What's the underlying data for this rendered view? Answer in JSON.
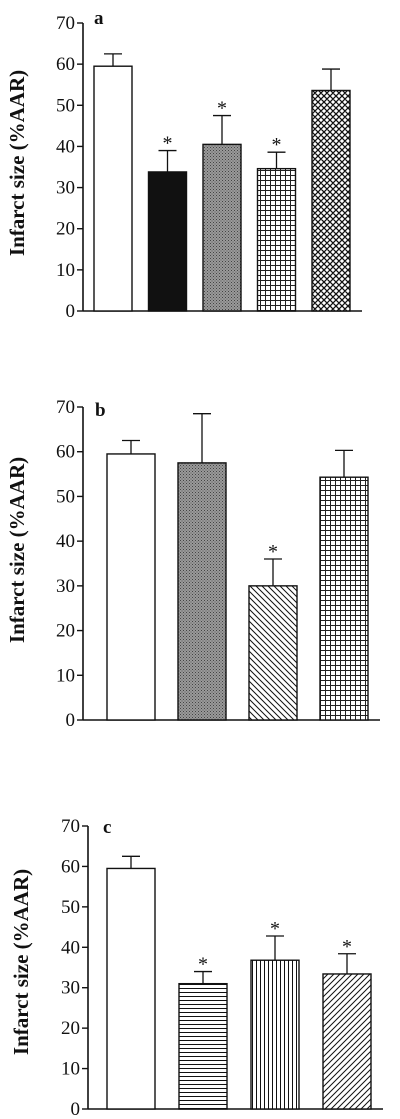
{
  "chart_data": [
    {
      "type": "bar",
      "panel_label": "a",
      "ylabel": "Infarct size (%AAR)",
      "ylim": [
        0,
        70
      ],
      "yticks": [
        "0",
        "10",
        "20",
        "30",
        "40",
        "50",
        "60",
        "70"
      ],
      "grid": false,
      "values": [
        59.5,
        33.8,
        40.5,
        34.6,
        53.6
      ],
      "errors": [
        3.0,
        5.2,
        7.0,
        4.0,
        5.2
      ],
      "significance": [
        "",
        "*",
        "*",
        "*",
        ""
      ],
      "fills": [
        "white",
        "black",
        "dense-gray",
        "grid",
        "crosshatch"
      ]
    },
    {
      "type": "bar",
      "panel_label": "b",
      "ylabel": "Infarct size (%AAR)",
      "ylim": [
        0,
        70
      ],
      "yticks": [
        "0",
        "10",
        "20",
        "30",
        "40",
        "50",
        "60",
        "70"
      ],
      "grid": false,
      "values": [
        59.5,
        57.5,
        30.0,
        54.3
      ],
      "errors": [
        3.0,
        11.0,
        6.0,
        6.0
      ],
      "significance": [
        "",
        "",
        "*",
        ""
      ],
      "fills": [
        "white",
        "dense-gray",
        "diagonal-back",
        "grid"
      ]
    },
    {
      "type": "bar",
      "panel_label": "c",
      "ylabel": "Infarct size (%AAR)",
      "ylim": [
        0,
        70
      ],
      "yticks": [
        "0",
        "10",
        "20",
        "30",
        "40",
        "50",
        "60",
        "70"
      ],
      "grid": false,
      "values": [
        59.5,
        31.0,
        36.8,
        33.4
      ],
      "errors": [
        3.0,
        3.0,
        6.0,
        5.0
      ],
      "significance": [
        "",
        "*",
        "*",
        "*"
      ],
      "fills": [
        "white",
        "horizontal",
        "vertical",
        "diagonal-forward"
      ]
    }
  ],
  "colors": {
    "ink": "#111111",
    "paper": "#ffffff",
    "gray": "#8a8a8a"
  }
}
